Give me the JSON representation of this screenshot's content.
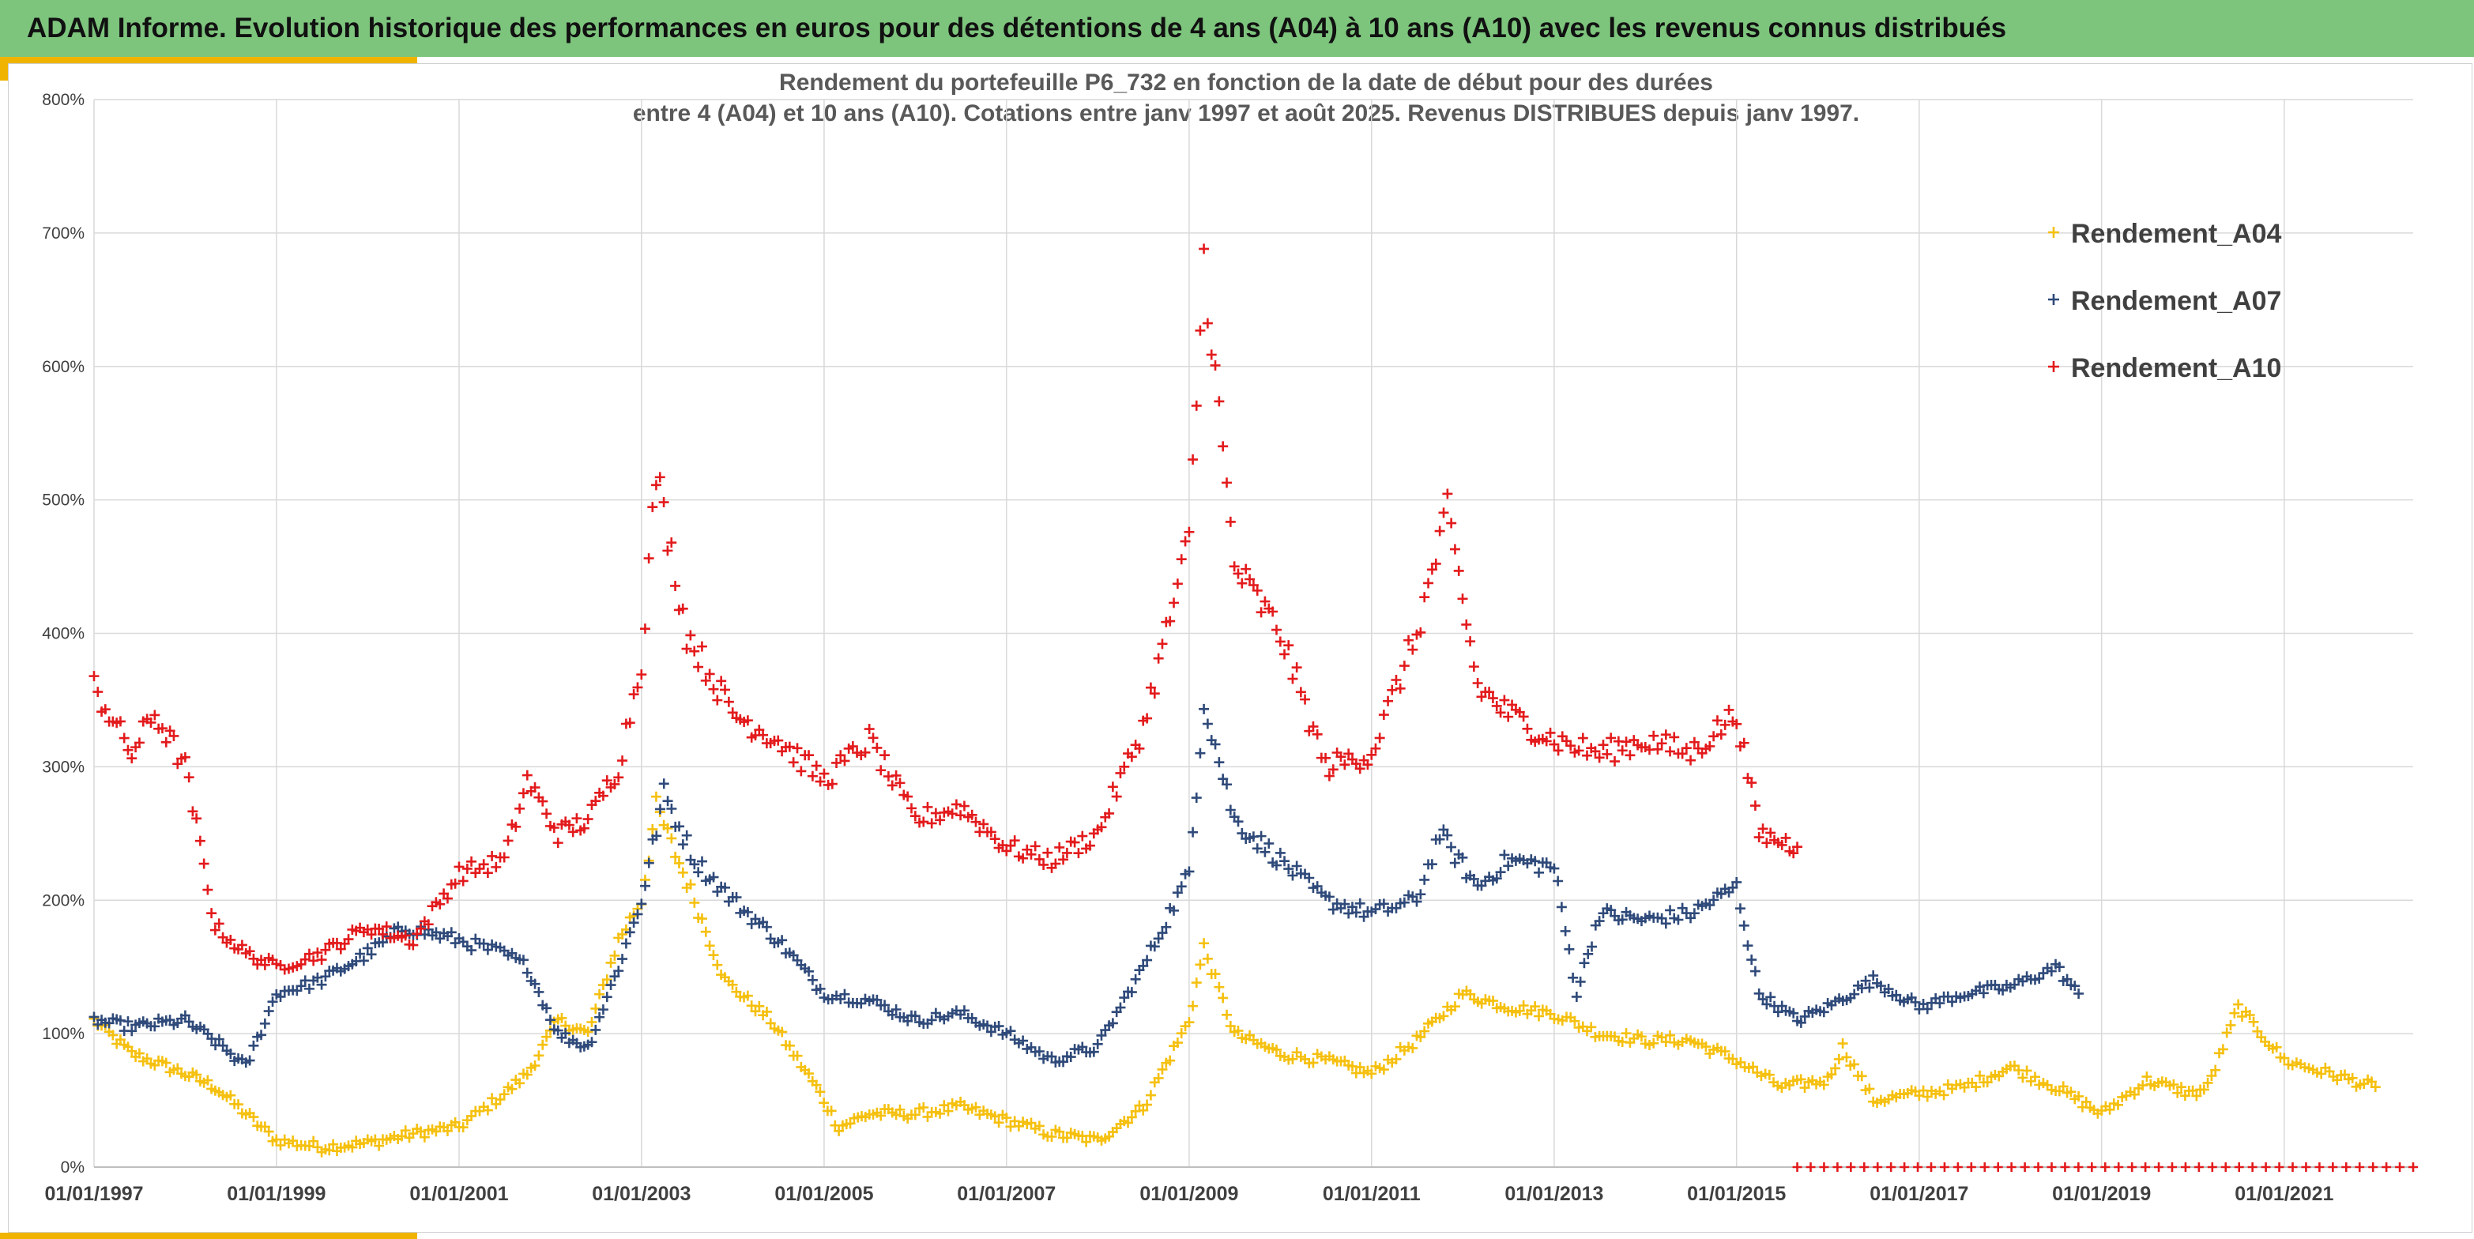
{
  "banner": {
    "title": "ADAM Informe. Evolution historique des performances en euros pour des détentions de 4 ans (A04) à 10 ans (A10) avec les revenus connus distribués"
  },
  "colors": {
    "banner_bg": "#7dc47d",
    "accent": "#f0b400",
    "series_A04": "#f5c00f",
    "series_A07": "#2f4a7a",
    "series_A10": "#e31a1c"
  },
  "chart_data": {
    "type": "scatter",
    "title": [
      "Rendement du portefeuille P6_732 en fonction de la date de début pour des durées",
      "entre 4 (A04) et 10 ans (A10). Cotations entre janv 1997 et août 2025. Revenus DISTRIBUES depuis janv 1997."
    ],
    "xlabel": "",
    "ylabel": "",
    "marker": "+",
    "x_type": "date",
    "xlim": [
      "1997-01-01",
      "2022-06-01"
    ],
    "ylim": [
      0,
      800
    ],
    "y_ticks": [
      0,
      100,
      200,
      300,
      400,
      500,
      600,
      700,
      800
    ],
    "y_tick_labels": [
      "0%",
      "100%",
      "200%",
      "300%",
      "400%",
      "500%",
      "600%",
      "700%",
      "800%"
    ],
    "x_ticks": [
      "1997-01-01",
      "1999-01-01",
      "2001-01-01",
      "2003-01-01",
      "2005-01-01",
      "2007-01-01",
      "2009-01-01",
      "2011-01-01",
      "2013-01-01",
      "2015-01-01",
      "2017-01-01",
      "2019-01-01",
      "2021-01-01"
    ],
    "x_tick_labels": [
      "01/01/1997",
      "01/01/1999",
      "01/01/2001",
      "01/01/2003",
      "01/01/2005",
      "01/01/2007",
      "01/01/2009",
      "01/01/2011",
      "01/01/2013",
      "01/01/2015",
      "01/01/2017",
      "01/01/2019",
      "01/01/2021"
    ],
    "grid": true,
    "legend_position": "top-right",
    "series": [
      {
        "name": "Rendement_A04",
        "x": [
          "1997-01-01",
          "1997-06-01",
          "1998-01-01",
          "1998-05-01",
          "1998-09-01",
          "1999-01-01",
          "1999-07-01",
          "2000-01-01",
          "2000-07-01",
          "2001-01-01",
          "2001-07-01",
          "2001-10-01",
          "2002-02-01",
          "2002-06-01",
          "2002-10-01",
          "2003-01-01",
          "2003-03-01",
          "2003-08-01",
          "2003-12-01",
          "2004-06-01",
          "2004-12-01",
          "2005-03-01",
          "2005-07-01",
          "2006-01-01",
          "2006-07-01",
          "2007-01-01",
          "2007-07-01",
          "2008-01-01",
          "2008-07-01",
          "2009-01-01",
          "2009-03-01",
          "2009-07-01",
          "2010-01-01",
          "2010-07-01",
          "2011-01-01",
          "2011-07-01",
          "2012-01-01",
          "2012-07-01",
          "2013-01-01",
          "2013-07-01",
          "2014-01-01",
          "2014-07-01",
          "2015-01-01",
          "2015-07-01",
          "2016-01-01",
          "2016-03-01",
          "2016-07-01",
          "2017-01-01",
          "2017-07-01",
          "2018-01-01",
          "2018-07-01",
          "2019-01-01",
          "2019-07-01",
          "2020-01-01",
          "2020-03-01",
          "2020-07-01",
          "2021-01-01",
          "2021-07-01",
          "2022-01-01"
        ],
        "y": [
          110,
          85,
          70,
          60,
          40,
          20,
          15,
          18,
          25,
          30,
          55,
          70,
          110,
          100,
          170,
          200,
          270,
          200,
          140,
          110,
          60,
          30,
          40,
          40,
          45,
          35,
          25,
          20,
          45,
          110,
          165,
          100,
          85,
          80,
          70,
          95,
          130,
          120,
          115,
          100,
          95,
          95,
          80,
          60,
          65,
          90,
          50,
          55,
          60,
          75,
          60,
          40,
          65,
          55,
          60,
          120,
          80,
          70,
          60
        ]
      },
      {
        "name": "Rendement_A07",
        "x": [
          "1997-01-01",
          "1997-06-01",
          "1998-01-01",
          "1998-06-01",
          "1998-09-01",
          "1999-01-01",
          "1999-07-01",
          "2000-01-01",
          "2000-06-01",
          "2001-01-01",
          "2001-07-01",
          "2001-10-01",
          "2002-02-01",
          "2002-06-01",
          "2002-10-01",
          "2003-01-01",
          "2003-04-01",
          "2003-08-01",
          "2004-01-01",
          "2004-07-01",
          "2005-01-01",
          "2005-07-01",
          "2006-01-01",
          "2006-07-01",
          "2007-01-01",
          "2007-07-01",
          "2008-01-01",
          "2008-07-01",
          "2009-01-01",
          "2009-03-01",
          "2009-07-01",
          "2010-01-01",
          "2010-07-01",
          "2011-01-01",
          "2011-07-01",
          "2011-10-01",
          "2012-03-01",
          "2012-07-01",
          "2013-01-01",
          "2013-04-01",
          "2013-07-01",
          "2014-01-01",
          "2014-07-01",
          "2015-01-01",
          "2015-04-01",
          "2015-09-01",
          "2016-01-01",
          "2016-07-01",
          "2017-01-01",
          "2017-07-01",
          "2018-01-01",
          "2018-07-01",
          "2018-10-01"
        ],
        "y": [
          110,
          105,
          110,
          90,
          75,
          130,
          140,
          160,
          180,
          170,
          160,
          150,
          100,
          90,
          150,
          200,
          280,
          230,
          200,
          170,
          130,
          125,
          110,
          115,
          100,
          80,
          90,
          150,
          220,
          350,
          260,
          230,
          200,
          190,
          200,
          250,
          210,
          230,
          225,
          130,
          190,
          185,
          190,
          210,
          130,
          110,
          120,
          140,
          120,
          130,
          135,
          150,
          130
        ]
      },
      {
        "name": "Rendement_A10",
        "x": [
          "1997-01-01",
          "1997-06-01",
          "1997-09-01",
          "1998-01-01",
          "1998-05-01",
          "1998-09-01",
          "1999-01-01",
          "1999-07-01",
          "2000-01-01",
          "2000-07-01",
          "2001-01-01",
          "2001-07-01",
          "2001-10-01",
          "2002-02-01",
          "2002-06-01",
          "2002-10-01",
          "2003-01-01",
          "2003-03-01",
          "2003-07-01",
          "2004-01-01",
          "2004-07-01",
          "2005-01-01",
          "2005-07-01",
          "2006-01-01",
          "2006-07-01",
          "2007-01-01",
          "2007-07-01",
          "2008-01-01",
          "2008-07-01",
          "2009-01-01",
          "2009-03-01",
          "2009-07-01",
          "2010-01-01",
          "2010-07-01",
          "2011-01-01",
          "2011-07-01",
          "2011-11-01",
          "2012-03-01",
          "2012-07-01",
          "2013-01-01",
          "2013-07-01",
          "2014-01-01",
          "2014-07-01",
          "2015-01-01",
          "2015-04-01",
          "2015-09-01"
        ],
        "y": [
          360,
          310,
          340,
          300,
          180,
          160,
          150,
          160,
          180,
          170,
          220,
          230,
          290,
          250,
          260,
          300,
          380,
          520,
          400,
          340,
          320,
          290,
          320,
          260,
          270,
          240,
          230,
          250,
          330,
          470,
          680,
          450,
          400,
          300,
          310,
          400,
          490,
          360,
          340,
          320,
          310,
          320,
          310,
          340,
          250,
          240
        ]
      },
      {
        "name": "",
        "x": [
          "2015-09-01",
          "2022-06-01"
        ],
        "y": [
          0,
          0
        ]
      }
    ]
  }
}
